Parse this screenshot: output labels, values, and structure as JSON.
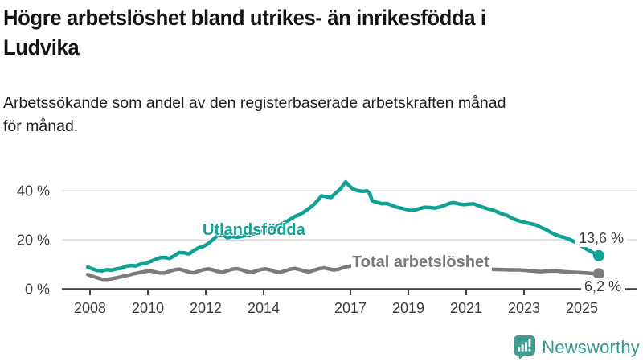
{
  "header": {
    "title_lines": [
      "Högre arbetslöshet bland utrikes- än inrikesfödda i",
      "Ludvika"
    ],
    "subtitle_lines": [
      "Arbetssökande som andel av den registerbaserade arbetskraften månad",
      "för månad."
    ]
  },
  "colors": {
    "accent_teal": "#10a195",
    "series_gray": "#7b7b7b",
    "gridline": "#d9d9d9",
    "axis": "#3f3f3f",
    "brand_teal": "#2f9a8c"
  },
  "chart_data": {
    "type": "line",
    "title": "Högre arbetslöshet bland utrikes- än inrikesfödda i Ludvika",
    "xlabel": "",
    "ylabel": "",
    "unit": "%",
    "grid": "horizontal",
    "legend_position": "inline-labels",
    "xlim": [
      2007.9,
      2026.2
    ],
    "ylim": [
      0,
      46
    ],
    "x_ticks": [
      "2008",
      "2010",
      "2012",
      "2014",
      "2017",
      "2019",
      "2021",
      "2023",
      "2025"
    ],
    "x_tick_years": [
      2008,
      2010,
      2012,
      2014,
      2017,
      2019,
      2021,
      2023,
      2025
    ],
    "y_ticks": [
      "0 %",
      "20 %",
      "40 %"
    ],
    "y_tick_values": [
      0,
      20,
      40
    ],
    "series": [
      {
        "name": "Utlandsfödda",
        "color": "#10a195",
        "end_value": 13.6,
        "end_label": "13,6 %",
        "points": [
          [
            2007.92,
            9.0
          ],
          [
            2008.08,
            8.2
          ],
          [
            2008.25,
            7.6
          ],
          [
            2008.42,
            7.4
          ],
          [
            2008.58,
            7.9
          ],
          [
            2008.75,
            7.7
          ],
          [
            2008.92,
            8.2
          ],
          [
            2009.08,
            8.5
          ],
          [
            2009.25,
            9.3
          ],
          [
            2009.42,
            9.6
          ],
          [
            2009.58,
            9.4
          ],
          [
            2009.75,
            10.2
          ],
          [
            2009.92,
            10.4
          ],
          [
            2010.08,
            11.2
          ],
          [
            2010.25,
            12.0
          ],
          [
            2010.42,
            12.8
          ],
          [
            2010.58,
            12.9
          ],
          [
            2010.75,
            12.5
          ],
          [
            2010.92,
            13.6
          ],
          [
            2011.08,
            14.9
          ],
          [
            2011.25,
            14.8
          ],
          [
            2011.42,
            14.3
          ],
          [
            2011.58,
            15.7
          ],
          [
            2011.75,
            16.8
          ],
          [
            2011.92,
            17.4
          ],
          [
            2012.08,
            18.5
          ],
          [
            2012.25,
            20.2
          ],
          [
            2012.42,
            21.9
          ],
          [
            2012.58,
            22.3
          ],
          [
            2012.75,
            20.9
          ],
          [
            2012.92,
            21.4
          ],
          [
            2013.08,
            21.1
          ],
          [
            2013.33,
            21.7
          ],
          [
            2013.58,
            22.3
          ],
          [
            2013.83,
            23.0
          ],
          [
            2014.08,
            23.8
          ],
          [
            2014.33,
            24.8
          ],
          [
            2014.58,
            26.2
          ],
          [
            2014.83,
            27.8
          ],
          [
            2015.08,
            29.6
          ],
          [
            2015.25,
            30.4
          ],
          [
            2015.42,
            31.6
          ],
          [
            2015.58,
            33.0
          ],
          [
            2015.75,
            34.6
          ],
          [
            2015.92,
            36.8
          ],
          [
            2016.0,
            38.0
          ],
          [
            2016.17,
            37.6
          ],
          [
            2016.33,
            37.3
          ],
          [
            2016.5,
            39.2
          ],
          [
            2016.67,
            41.0
          ],
          [
            2016.83,
            43.7
          ],
          [
            2016.95,
            42.2
          ],
          [
            2017.08,
            40.8
          ],
          [
            2017.25,
            40.1
          ],
          [
            2017.42,
            39.8
          ],
          [
            2017.58,
            40.0
          ],
          [
            2017.67,
            38.8
          ],
          [
            2017.75,
            36.0
          ],
          [
            2017.92,
            35.3
          ],
          [
            2018.08,
            34.8
          ],
          [
            2018.25,
            34.9
          ],
          [
            2018.42,
            34.2
          ],
          [
            2018.58,
            33.4
          ],
          [
            2018.75,
            33.0
          ],
          [
            2018.92,
            32.5
          ],
          [
            2019.08,
            32.0
          ],
          [
            2019.25,
            32.3
          ],
          [
            2019.42,
            32.9
          ],
          [
            2019.58,
            33.3
          ],
          [
            2019.75,
            33.2
          ],
          [
            2019.92,
            33.0
          ],
          [
            2020.08,
            33.4
          ],
          [
            2020.25,
            34.1
          ],
          [
            2020.42,
            34.9
          ],
          [
            2020.58,
            35.2
          ],
          [
            2020.75,
            34.7
          ],
          [
            2020.92,
            34.4
          ],
          [
            2021.08,
            34.6
          ],
          [
            2021.25,
            34.8
          ],
          [
            2021.42,
            34.0
          ],
          [
            2021.58,
            33.3
          ],
          [
            2021.75,
            32.7
          ],
          [
            2021.92,
            32.2
          ],
          [
            2022.08,
            31.4
          ],
          [
            2022.25,
            30.6
          ],
          [
            2022.42,
            30.0
          ],
          [
            2022.58,
            28.9
          ],
          [
            2022.75,
            28.1
          ],
          [
            2022.92,
            27.5
          ],
          [
            2023.08,
            27.0
          ],
          [
            2023.25,
            26.6
          ],
          [
            2023.42,
            26.1
          ],
          [
            2023.58,
            25.1
          ],
          [
            2023.75,
            24.3
          ],
          [
            2023.92,
            23.1
          ],
          [
            2024.08,
            22.2
          ],
          [
            2024.25,
            21.4
          ],
          [
            2024.42,
            21.0
          ],
          [
            2024.58,
            20.2
          ],
          [
            2024.75,
            19.2
          ],
          [
            2024.92,
            18.0
          ],
          [
            2025.08,
            16.8
          ],
          [
            2025.25,
            15.7
          ],
          [
            2025.42,
            14.6
          ],
          [
            2025.58,
            13.6
          ]
        ]
      },
      {
        "name": "Total arbetslöshet",
        "color": "#7b7b7b",
        "end_value": 6.2,
        "end_label": "6,2 %",
        "points": [
          [
            2007.92,
            5.9
          ],
          [
            2008.08,
            5.2
          ],
          [
            2008.25,
            4.6
          ],
          [
            2008.42,
            4.0
          ],
          [
            2008.58,
            3.9
          ],
          [
            2008.75,
            4.2
          ],
          [
            2008.92,
            4.6
          ],
          [
            2009.08,
            5.0
          ],
          [
            2009.33,
            5.7
          ],
          [
            2009.58,
            6.4
          ],
          [
            2009.83,
            7.0
          ],
          [
            2010.08,
            7.4
          ],
          [
            2010.25,
            7.0
          ],
          [
            2010.42,
            6.5
          ],
          [
            2010.58,
            6.6
          ],
          [
            2010.75,
            7.2
          ],
          [
            2010.92,
            7.9
          ],
          [
            2011.08,
            8.1
          ],
          [
            2011.25,
            7.6
          ],
          [
            2011.42,
            6.9
          ],
          [
            2011.58,
            6.6
          ],
          [
            2011.75,
            7.3
          ],
          [
            2011.92,
            7.9
          ],
          [
            2012.08,
            8.2
          ],
          [
            2012.25,
            7.8
          ],
          [
            2012.42,
            7.1
          ],
          [
            2012.58,
            6.8
          ],
          [
            2012.75,
            7.5
          ],
          [
            2012.92,
            8.1
          ],
          [
            2013.08,
            8.3
          ],
          [
            2013.25,
            7.8
          ],
          [
            2013.42,
            7.1
          ],
          [
            2013.58,
            6.8
          ],
          [
            2013.75,
            7.4
          ],
          [
            2013.92,
            8.0
          ],
          [
            2014.08,
            8.2
          ],
          [
            2014.25,
            7.7
          ],
          [
            2014.42,
            7.0
          ],
          [
            2014.58,
            6.8
          ],
          [
            2014.75,
            7.5
          ],
          [
            2014.92,
            8.1
          ],
          [
            2015.08,
            8.4
          ],
          [
            2015.25,
            7.9
          ],
          [
            2015.42,
            7.3
          ],
          [
            2015.58,
            7.0
          ],
          [
            2015.75,
            7.7
          ],
          [
            2015.92,
            8.3
          ],
          [
            2016.08,
            8.6
          ],
          [
            2016.25,
            8.2
          ],
          [
            2016.42,
            7.8
          ],
          [
            2016.58,
            8.0
          ],
          [
            2016.75,
            8.7
          ],
          [
            2016.92,
            9.2
          ],
          [
            2017.08,
            9.5
          ],
          [
            2017.33,
            9.7
          ],
          [
            2017.58,
            9.5
          ],
          [
            2017.83,
            9.1
          ],
          [
            2018.08,
            8.9
          ],
          [
            2018.5,
            8.5
          ],
          [
            2018.92,
            8.3
          ],
          [
            2019.33,
            8.0
          ],
          [
            2019.75,
            7.9
          ],
          [
            2020.08,
            8.1
          ],
          [
            2020.42,
            8.8
          ],
          [
            2020.75,
            8.6
          ],
          [
            2021.08,
            8.4
          ],
          [
            2021.5,
            8.1
          ],
          [
            2021.92,
            8.0
          ],
          [
            2022.33,
            7.9
          ],
          [
            2022.58,
            7.8
          ],
          [
            2022.83,
            7.8
          ],
          [
            2023.08,
            7.6
          ],
          [
            2023.33,
            7.3
          ],
          [
            2023.58,
            7.1
          ],
          [
            2023.83,
            7.3
          ],
          [
            2024.08,
            7.4
          ],
          [
            2024.33,
            7.1
          ],
          [
            2024.58,
            6.9
          ],
          [
            2024.83,
            6.8
          ],
          [
            2025.08,
            6.6
          ],
          [
            2025.25,
            6.5
          ],
          [
            2025.42,
            6.3
          ],
          [
            2025.58,
            6.2
          ]
        ]
      }
    ]
  },
  "branding": {
    "logo_text": "Newsworthy",
    "icon": "newsworthy-speech-bubble-bar-chart-icon"
  }
}
